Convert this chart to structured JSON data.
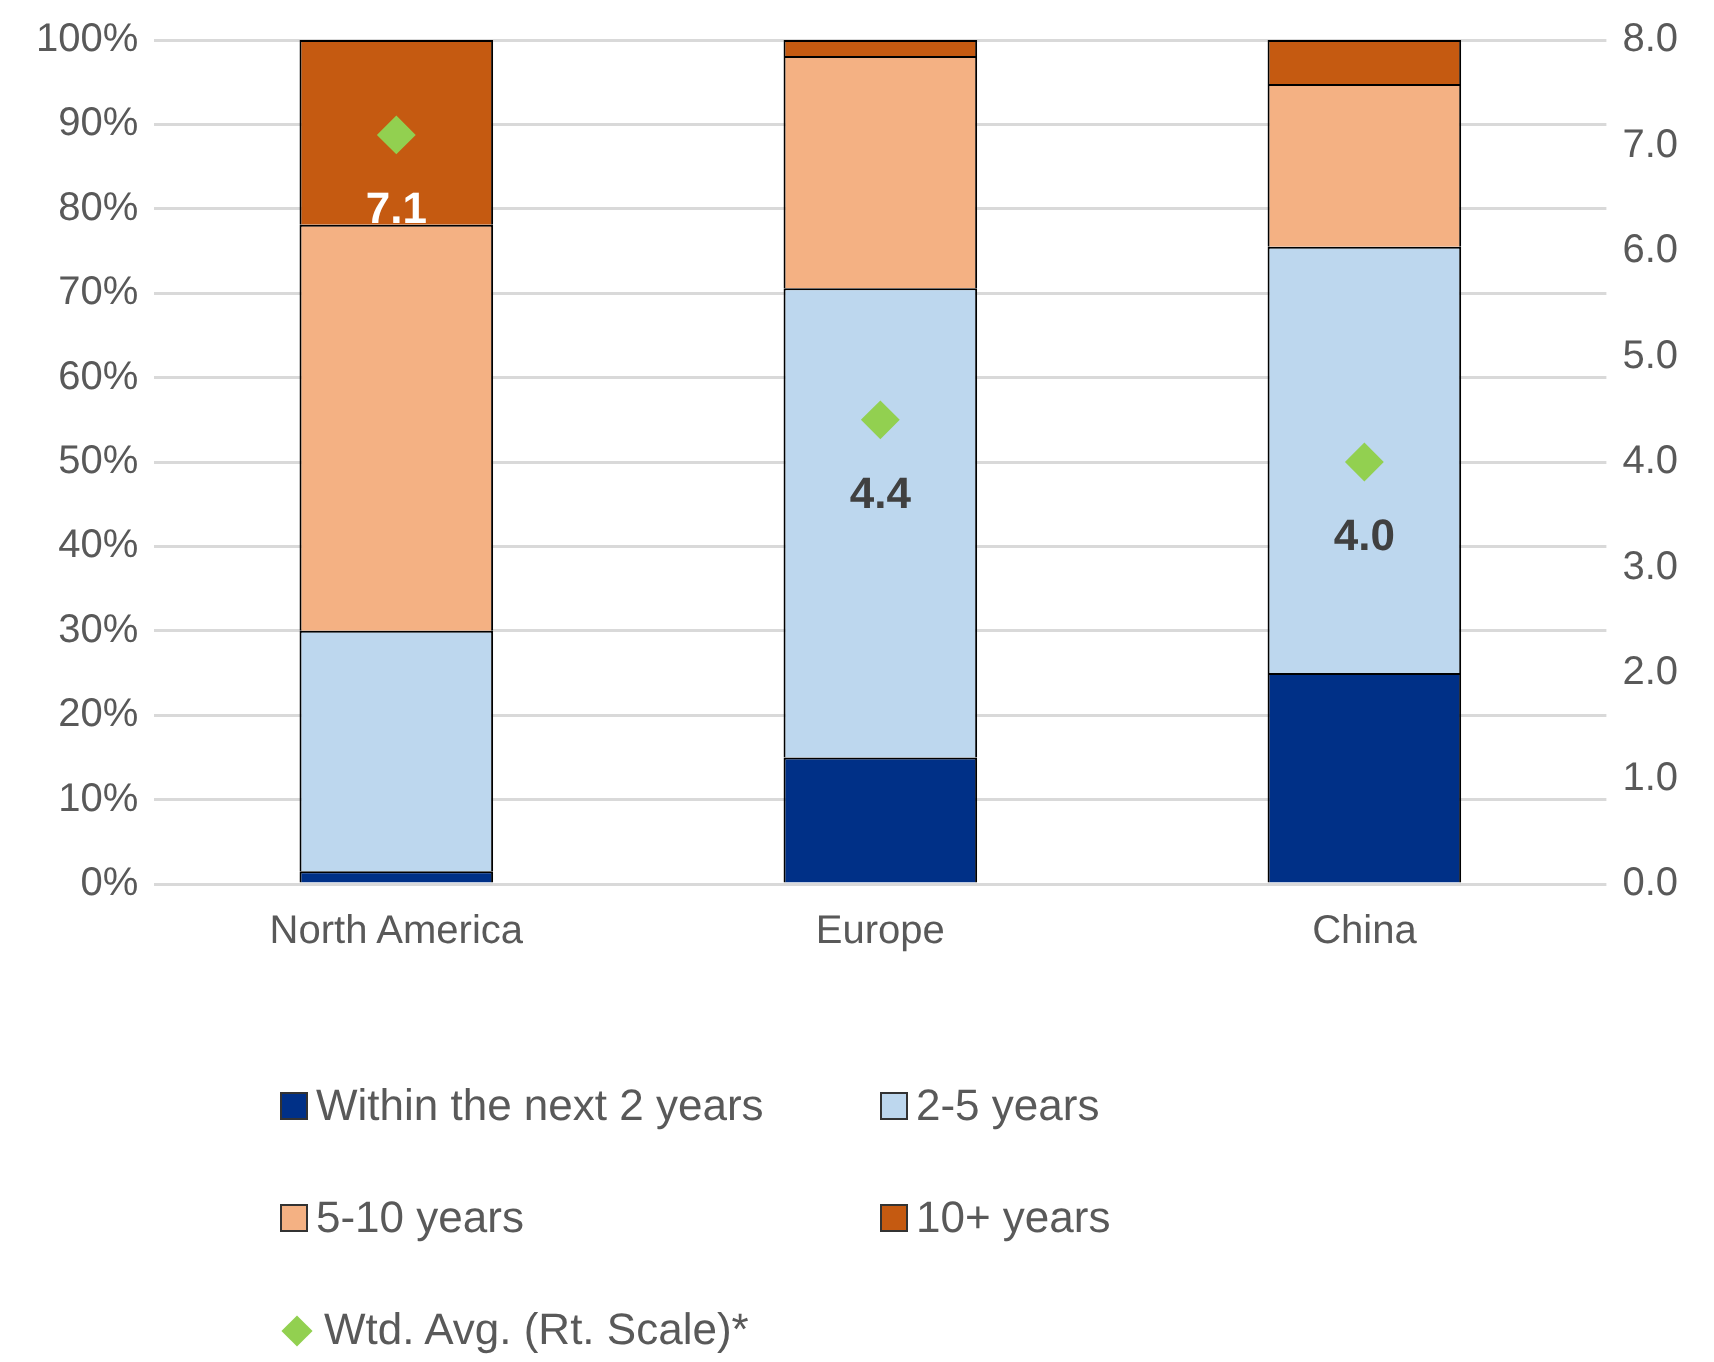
{
  "chart_data": {
    "type": "bar",
    "stacked": true,
    "categories": [
      "North America",
      "Europe",
      "China"
    ],
    "ylim": [
      0,
      100
    ],
    "yticks": [
      {
        "value": 0,
        "label": "0%"
      },
      {
        "value": 10,
        "label": "10%"
      },
      {
        "value": 20,
        "label": "20%"
      },
      {
        "value": 30,
        "label": "30%"
      },
      {
        "value": 40,
        "label": "40%"
      },
      {
        "value": 50,
        "label": "50%"
      },
      {
        "value": 60,
        "label": "60%"
      },
      {
        "value": 70,
        "label": "70%"
      },
      {
        "value": 80,
        "label": "80%"
      },
      {
        "value": 90,
        "label": "90%"
      },
      {
        "value": 100,
        "label": "100%"
      }
    ],
    "y2lim": [
      0,
      8
    ],
    "y2ticks": [
      {
        "value": 0,
        "label": "0.0"
      },
      {
        "value": 1,
        "label": "1.0"
      },
      {
        "value": 2,
        "label": "2.0"
      },
      {
        "value": 3,
        "label": "3.0"
      },
      {
        "value": 4,
        "label": "4.0"
      },
      {
        "value": 5,
        "label": "5.0"
      },
      {
        "value": 6,
        "label": "6.0"
      },
      {
        "value": 7,
        "label": "7.0"
      },
      {
        "value": 8,
        "label": "8.0"
      }
    ],
    "grid": "y",
    "legend": "bottom",
    "series": [
      {
        "name": "Within the next 2 years",
        "color": "#003087",
        "values": [
          1.5,
          15,
          25
        ]
      },
      {
        "name": "2-5 years",
        "color": "#bdd7ee",
        "values": [
          28.5,
          55.6,
          50.5
        ]
      },
      {
        "name": "5-10 years",
        "color": "#f4b183",
        "values": [
          48.1,
          27.5,
          19.3
        ]
      },
      {
        "name": "10+ years",
        "color": "#c55a11",
        "values": [
          21.9,
          1.9,
          5.2
        ]
      },
      {
        "name": "Wtd. Avg. (Rt. Scale)*",
        "type": "scatter",
        "axis": "y2",
        "marker": "diamond",
        "color": "#92d050",
        "x": [
          "North America",
          "Europe",
          "China"
        ],
        "values": [
          7.1,
          4.4,
          4.0
        ],
        "value_labels": [
          "7.1",
          "4.4",
          "4.0"
        ]
      }
    ]
  }
}
